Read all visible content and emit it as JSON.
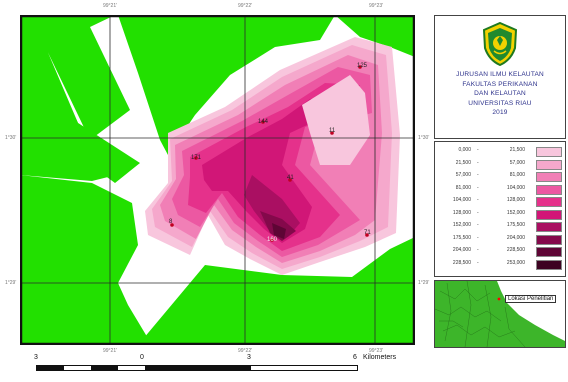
{
  "map": {
    "top_coords": [
      "99°21'",
      "99°22'",
      "99°23'"
    ],
    "bottom_coords": [
      "99°21'",
      "99°22'",
      "99°23'"
    ],
    "left_coords": [
      "1°30'",
      "1°29'"
    ],
    "right_coords": [
      "1°30'",
      "1°29'"
    ],
    "station_labels": [
      "125",
      "144",
      "171",
      "11",
      "41",
      "8",
      "160",
      "71"
    ],
    "colors": {
      "land": "#22e000",
      "water": "#ffffff",
      "grid": "#2b2b2b",
      "frame": "#111111"
    }
  },
  "title_panel": {
    "lines": [
      "JURUSAN ILMU KELAUTAN",
      "FAKULTAS PERIKANAN",
      "DAN KELAUTAN",
      "UNIVERSITAS RIAU",
      "2019"
    ]
  },
  "legend": {
    "dash": "-",
    "rows": [
      {
        "low": "0,000",
        "high": "21,500",
        "color": "#f8c6dd"
      },
      {
        "low": "21,500",
        "high": "57,000",
        "color": "#f5a8cc"
      },
      {
        "low": "57,000",
        "high": "81,000",
        "color": "#f17fb6"
      },
      {
        "low": "81,000",
        "high": "104,000",
        "color": "#ec58a2"
      },
      {
        "low": "104,000",
        "high": "128,000",
        "color": "#e5318b"
      },
      {
        "low": "128,000",
        "high": "152,000",
        "color": "#d11677"
      },
      {
        "low": "152,000",
        "high": "175,500",
        "color": "#aa0f62"
      },
      {
        "low": "175,500",
        "high": "204,000",
        "color": "#84094b"
      },
      {
        "low": "204,000",
        "high": "228,500",
        "color": "#5e0535"
      },
      {
        "low": "228,500",
        "high": "253,000",
        "color": "#3d0222"
      }
    ]
  },
  "inset": {
    "label": "Lokasi Penelitian"
  },
  "scalebar": {
    "labels": [
      "3",
      "0",
      "3",
      "6",
      "Kilometers"
    ]
  }
}
